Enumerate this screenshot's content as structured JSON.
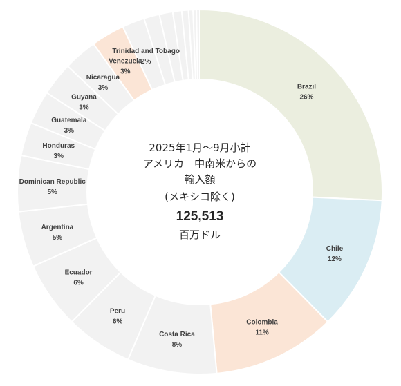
{
  "chart_data": {
    "type": "pie",
    "subtype": "donut",
    "center_text": {
      "line1": "2025年1月～9月小計",
      "line2": "アメリカ　中南米からの",
      "line3": "輸入額",
      "line4": "(メキシコ除く)",
      "total": "125,513",
      "unit": "百万ドル"
    },
    "slices": [
      {
        "label": "Brazil",
        "pct_label": "26%",
        "value": 26.0,
        "color": "#EBEEDF",
        "labeled": true
      },
      {
        "label": "Chile",
        "pct_label": "12%",
        "value": 12.0,
        "color": "#DAEDF3",
        "labeled": true
      },
      {
        "label": "Colombia",
        "pct_label": "11%",
        "value": 11.0,
        "color": "#FBE5D6",
        "labeled": true
      },
      {
        "label": "Costa Rica",
        "pct_label": "8%",
        "value": 8.0,
        "color": "#F2F2F2",
        "labeled": true
      },
      {
        "label": "Peru",
        "pct_label": "6%",
        "value": 6.0,
        "color": "#F2F2F2",
        "labeled": true
      },
      {
        "label": "Ecuador",
        "pct_label": "6%",
        "value": 6.0,
        "color": "#F2F2F2",
        "labeled": true
      },
      {
        "label": "Argentina",
        "pct_label": "5%",
        "value": 5.0,
        "color": "#F2F2F2",
        "labeled": true
      },
      {
        "label": "Dominican Republic",
        "pct_label": "5%",
        "value": 5.0,
        "color": "#F2F2F2",
        "labeled": true
      },
      {
        "label": "Honduras",
        "pct_label": "3%",
        "value": 3.0,
        "color": "#F2F2F2",
        "labeled": true
      },
      {
        "label": "Guatemala",
        "pct_label": "3%",
        "value": 3.0,
        "color": "#F2F2F2",
        "labeled": true
      },
      {
        "label": "Guyana",
        "pct_label": "3%",
        "value": 3.0,
        "color": "#F2F2F2",
        "labeled": true
      },
      {
        "label": "Nicaragua",
        "pct_label": "3%",
        "value": 3.0,
        "color": "#F2F2F2",
        "labeled": true
      },
      {
        "label": "Venezuela",
        "pct_label": "3%",
        "value": 3.0,
        "color": "#FBE5D6",
        "labeled": true
      },
      {
        "label": "Trinidad and Tobago",
        "pct_label": "2%",
        "value": 2.0,
        "color": "#F2F2F2",
        "labeled": true
      },
      {
        "label": "",
        "pct_label": "",
        "value": 1.4,
        "color": "#F2F2F2",
        "labeled": false
      },
      {
        "label": "",
        "pct_label": "",
        "value": 1.2,
        "color": "#F2F2F2",
        "labeled": false
      },
      {
        "label": "",
        "pct_label": "",
        "value": 0.8,
        "color": "#F2F2F2",
        "labeled": false
      },
      {
        "label": "",
        "pct_label": "",
        "value": 0.6,
        "color": "#F2F2F2",
        "labeled": false
      },
      {
        "label": "",
        "pct_label": "",
        "value": 0.4,
        "color": "#F2F2F2",
        "labeled": false
      },
      {
        "label": "",
        "pct_label": "",
        "value": 0.3,
        "color": "#F2F2F2",
        "labeled": false
      },
      {
        "label": "",
        "pct_label": "",
        "value": 0.3,
        "color": "#F2F2F2",
        "labeled": false
      }
    ]
  }
}
